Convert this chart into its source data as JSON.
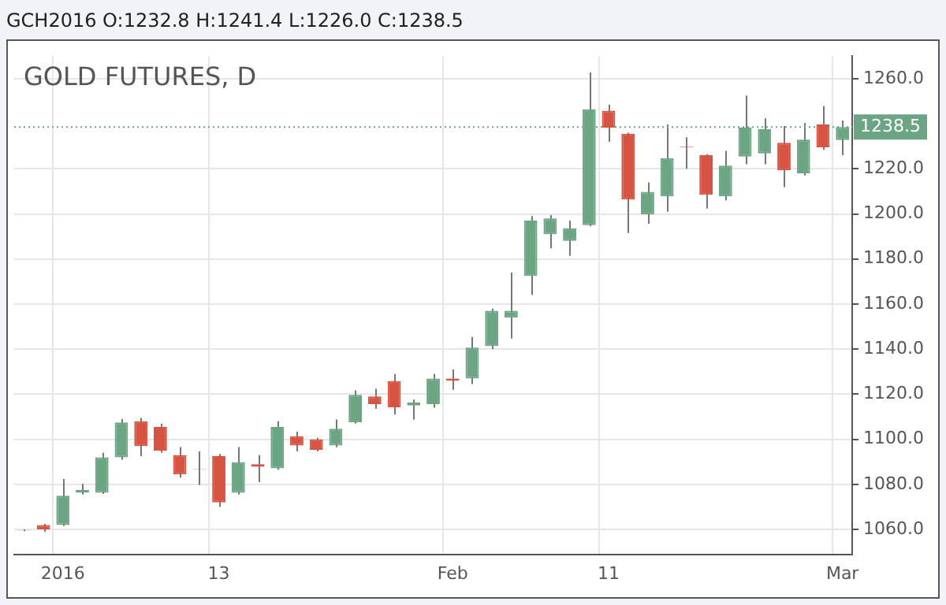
{
  "chart_data": {
    "type": "candlestick",
    "title": "GOLD FUTURES, D",
    "subtitle": "GCH2016 O:1232.8 H:1241.4 L:1226.0 C:1238.5",
    "categories": [
      null,
      null,
      "2016",
      null,
      null,
      null,
      null,
      null,
      null,
      null,
      "13",
      null,
      null,
      null,
      null,
      null,
      null,
      null,
      null,
      null,
      null,
      null,
      "Feb",
      null,
      null,
      null,
      null,
      null,
      null,
      null,
      "11",
      null,
      null,
      null,
      null,
      null,
      null,
      null,
      null,
      null,
      null,
      null,
      "Mar"
    ],
    "ohlc": [
      [
        1059.5,
        1060,
        1059.3,
        1059.8
      ],
      [
        1062,
        1062.5,
        1059,
        1060
      ],
      [
        1062,
        1082.4,
        1061.5,
        1075
      ],
      [
        1076.3,
        1080.3,
        1075.5,
        1077.6
      ],
      [
        1076.3,
        1094,
        1075.8,
        1092
      ],
      [
        1092,
        1109,
        1091,
        1107.5
      ],
      [
        1108,
        1109.5,
        1092.5,
        1097
      ],
      [
        1105.5,
        1107,
        1094,
        1095
      ],
      [
        1093,
        1096.6,
        1083,
        1084.4
      ],
      [
        1086.8,
        1094.6,
        1079.7,
        1086.5
      ],
      [
        1092.5,
        1093.5,
        1070,
        1072
      ],
      [
        1076.3,
        1096.6,
        1075.5,
        1089.8
      ],
      [
        1089,
        1093,
        1081,
        1087.8
      ],
      [
        1087.1,
        1108,
        1086.5,
        1105.5
      ],
      [
        1101.4,
        1103.4,
        1094.6,
        1097.3
      ],
      [
        1100,
        1100.7,
        1094.6,
        1095.3
      ],
      [
        1097.3,
        1108.8,
        1096.5,
        1104.7
      ],
      [
        1107.5,
        1121.7,
        1107,
        1119.7
      ],
      [
        1119,
        1122.4,
        1113.6,
        1115.6
      ],
      [
        1125.8,
        1129,
        1111,
        1114.2
      ],
      [
        1115,
        1117.6,
        1108.8,
        1116.3
      ],
      [
        1115.6,
        1129,
        1114,
        1127
      ],
      [
        1127,
        1131,
        1122,
        1126
      ],
      [
        1127,
        1145.4,
        1124.5,
        1140.7
      ],
      [
        1141.4,
        1158,
        1140,
        1157
      ],
      [
        1154,
        1174,
        1144.7,
        1157
      ],
      [
        1172.5,
        1199,
        1164,
        1197
      ],
      [
        1191,
        1199.5,
        1184.7,
        1198
      ],
      [
        1188,
        1197,
        1181.4,
        1193.6
      ],
      [
        1195,
        1262.7,
        1194.5,
        1246.4
      ],
      [
        1245.8,
        1248.5,
        1232,
        1238.3
      ],
      [
        1235.6,
        1236,
        1191.5,
        1206.4
      ],
      [
        1199.7,
        1214,
        1195.6,
        1209.8
      ],
      [
        1207.8,
        1239.7,
        1201,
        1224.7
      ],
      [
        1229.8,
        1234,
        1220,
        1229.5
      ],
      [
        1226,
        1226.5,
        1202.4,
        1208.5
      ],
      [
        1207.8,
        1228,
        1206,
        1221.4
      ],
      [
        1225.4,
        1252.5,
        1222,
        1238.3
      ],
      [
        1226.8,
        1242.4,
        1222,
        1237.6
      ],
      [
        1231.5,
        1239,
        1211.9,
        1219.3
      ],
      [
        1218,
        1240.3,
        1217,
        1232.9
      ],
      [
        1239.7,
        1247.8,
        1228.5,
        1229.5
      ],
      [
        1232.8,
        1241.4,
        1226,
        1238.5
      ]
    ],
    "colors": [
      "#6ba583",
      "#d75442",
      "#6ba583",
      "#6ba583",
      "#6ba583",
      "#6ba583",
      "#d75442",
      "#d75442",
      "#d75442",
      "#d75442",
      "#d75442",
      "#6ba583",
      "#d75442",
      "#6ba583",
      "#d75442",
      "#d75442",
      "#6ba583",
      "#6ba583",
      "#d75442",
      "#d75442",
      "#6ba583",
      "#6ba583",
      "#d75442",
      "#6ba583",
      "#6ba583",
      "#6ba583",
      "#6ba583",
      "#6ba583",
      "#6ba583",
      "#6ba583",
      "#d75442",
      "#d75442",
      "#6ba583",
      "#6ba583",
      "#d75442",
      "#d75442",
      "#6ba583",
      "#6ba583",
      "#6ba583",
      "#d75442",
      "#6ba583",
      "#d75442",
      "#6ba583"
    ],
    "ylim": [
      1049,
      1270
    ],
    "yticks": [
      {
        "value": 1060,
        "label": "1060.0"
      },
      {
        "value": 1080,
        "label": "1080.0"
      },
      {
        "value": 1100,
        "label": "1100.0"
      },
      {
        "value": 1120,
        "label": "1120.0"
      },
      {
        "value": 1140,
        "label": "1140.0"
      },
      {
        "value": 1160,
        "label": "1160.0"
      },
      {
        "value": 1180,
        "label": "1180.0"
      },
      {
        "value": 1200,
        "label": "1200.0"
      },
      {
        "value": 1220,
        "label": "1220.0"
      },
      {
        "value": 1260,
        "label": "1260.0"
      }
    ],
    "ref_lines": [
      {
        "axis": "y",
        "value": 1238.5,
        "label": "1238.5",
        "color": "#6ba583",
        "line_style": "dotted"
      }
    ],
    "grid": true
  }
}
